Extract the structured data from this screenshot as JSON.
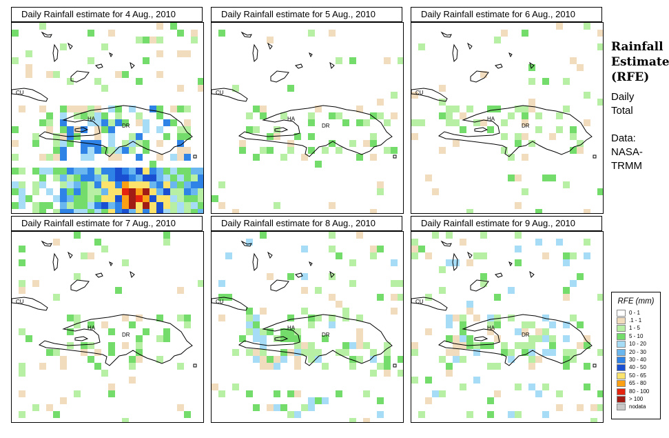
{
  "panels": [
    {
      "title": "Daily Rainfall estimate for  4 Aug., 2010",
      "intensity": "high"
    },
    {
      "title": "Daily Rainfall estimate for  5 Aug., 2010",
      "intensity": "low"
    },
    {
      "title": "Daily Rainfall estimate for  6 Aug., 2010",
      "intensity": "low"
    },
    {
      "title": "Daily Rainfall estimate for  7 Aug., 2010",
      "intensity": "low"
    },
    {
      "title": "Daily Rainfall estimate for  8 Aug., 2010",
      "intensity": "medium"
    },
    {
      "title": "Daily Rainfall estimate for  9 Aug., 2010",
      "intensity": "medium"
    }
  ],
  "map_labels": {
    "cuba": "CU",
    "haiti": "HA",
    "dominican_republic": "DR"
  },
  "side": {
    "title_line1": "Rainfall",
    "title_line2": "Estimate",
    "title_line3": "(RFE)",
    "daily_line1": "Daily",
    "daily_line2": "Total",
    "data_line1": "Data:",
    "data_line2": "NASA-",
    "data_line3": "TRMM"
  },
  "legend": {
    "title": "RFE (mm)",
    "items": [
      {
        "label": "0 - 1",
        "color": "#ffffff"
      },
      {
        "label": ".1 - 1",
        "color": "#f1dcbe"
      },
      {
        "label": "1 - 5",
        "color": "#b7f0a4"
      },
      {
        "label": "5 - 10",
        "color": "#74dc6a"
      },
      {
        "label": "10 - 20",
        "color": "#a6dcf6"
      },
      {
        "label": "20 - 30",
        "color": "#6ab6ef"
      },
      {
        "label": "30 - 40",
        "color": "#2f83e6"
      },
      {
        "label": "40 - 50",
        "color": "#1a4fd1"
      },
      {
        "label": "50 - 65",
        "color": "#fbe36c"
      },
      {
        "label": "65 - 80",
        "color": "#fb9f15"
      },
      {
        "label": "80 - 100",
        "color": "#e5240f"
      },
      {
        "label": "> 100",
        "color": "#a11c14"
      },
      {
        "label": "nodata",
        "color": "#c8c8c8"
      }
    ]
  }
}
